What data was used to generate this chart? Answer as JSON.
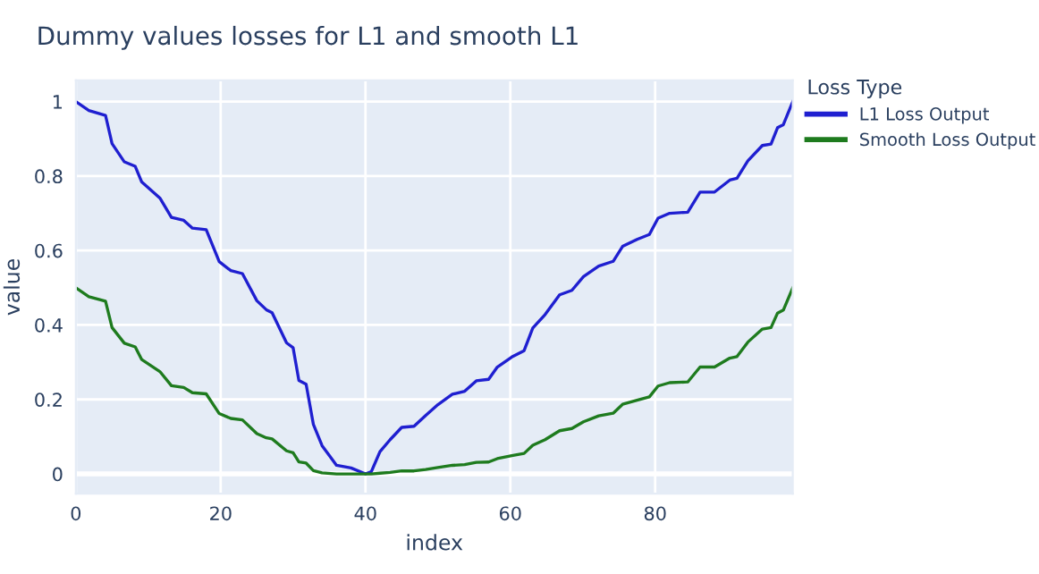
{
  "chart_data": {
    "type": "line",
    "title": "Dummy values losses for L1 and smooth L1",
    "xlabel": "index",
    "ylabel": "value",
    "legend_title": "Loss Type",
    "legend": "right",
    "grid": true,
    "line_style": "solid",
    "xlim": [
      0,
      99
    ],
    "ylim": [
      -0.053,
      1.057
    ],
    "xticks": [
      0,
      20,
      40,
      60,
      80
    ],
    "yticks": [
      0,
      0.2,
      0.4,
      0.6,
      0.8,
      1
    ],
    "x": [
      0,
      1.8,
      4.1,
      5,
      6.7,
      8.2,
      9.1,
      11.6,
      13.2,
      14.9,
      16.1,
      18,
      19.8,
      21.4,
      23,
      25,
      26.3,
      27.1,
      29.1,
      30,
      30.8,
      31.8,
      32.8,
      34,
      36,
      38,
      40,
      40.8,
      42,
      43.4,
      45,
      46.7,
      48.3,
      50,
      52,
      53.7,
      55.3,
      57,
      58.2,
      60.2,
      61.9,
      63.1,
      64.8,
      66.8,
      68.5,
      70.1,
      72.2,
      74.2,
      75.5,
      77.5,
      79.2,
      80.4,
      82,
      84.5,
      86.2,
      88.2,
      90.3,
      91.3,
      92.8,
      94.8,
      96,
      96.9,
      97.7,
      99
    ],
    "series": [
      {
        "name": "L1 Loss Output",
        "color": "#1f1fd0",
        "values": [
          1.0,
          0.976,
          0.963,
          0.887,
          0.838,
          0.826,
          0.784,
          0.741,
          0.689,
          0.681,
          0.66,
          0.656,
          0.57,
          0.546,
          0.538,
          0.465,
          0.441,
          0.433,
          0.352,
          0.339,
          0.251,
          0.241,
          0.133,
          0.076,
          0.023,
          0.016,
          0,
          0.006,
          0.06,
          0.092,
          0.125,
          0.128,
          0.157,
          0.186,
          0.214,
          0.222,
          0.25,
          0.254,
          0.287,
          0.314,
          0.331,
          0.392,
          0.428,
          0.481,
          0.493,
          0.53,
          0.558,
          0.571,
          0.611,
          0.63,
          0.643,
          0.687,
          0.7,
          0.703,
          0.757,
          0.757,
          0.789,
          0.794,
          0.841,
          0.882,
          0.886,
          0.93,
          0.938,
          1.0
        ]
      },
      {
        "name": "Smooth Loss Output",
        "color": "#1e7b1e",
        "values": [
          0.5,
          0.476,
          0.464,
          0.393,
          0.351,
          0.341,
          0.307,
          0.275,
          0.237,
          0.232,
          0.218,
          0.215,
          0.162,
          0.149,
          0.145,
          0.108,
          0.097,
          0.094,
          0.062,
          0.057,
          0.032,
          0.029,
          0.009,
          0.003,
          0,
          0,
          0,
          0,
          0.002,
          0.004,
          0.008,
          0.008,
          0.012,
          0.017,
          0.023,
          0.025,
          0.031,
          0.032,
          0.041,
          0.049,
          0.055,
          0.077,
          0.092,
          0.116,
          0.122,
          0.14,
          0.156,
          0.163,
          0.187,
          0.198,
          0.207,
          0.236,
          0.245,
          0.247,
          0.287,
          0.287,
          0.311,
          0.315,
          0.354,
          0.389,
          0.393,
          0.432,
          0.44,
          0.5
        ]
      }
    ]
  }
}
